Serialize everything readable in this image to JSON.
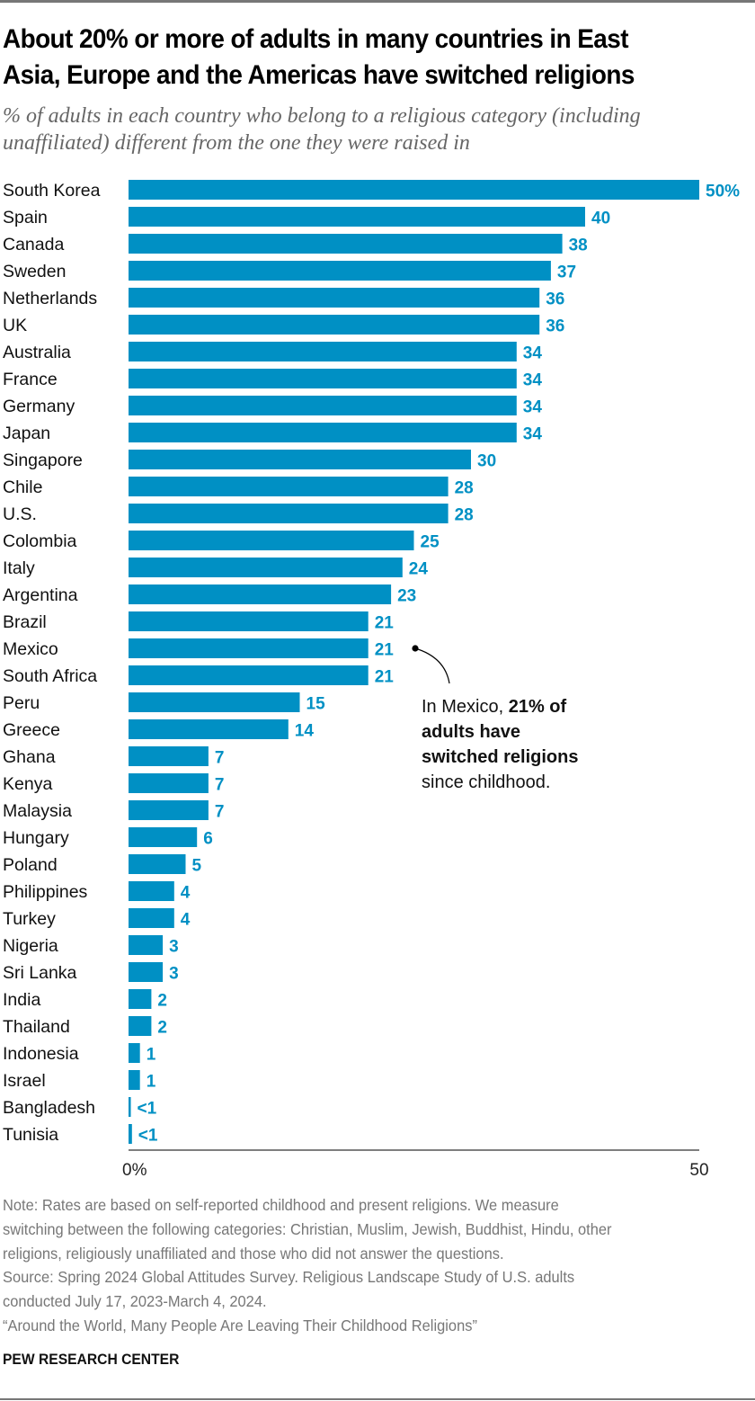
{
  "header": {
    "title_line1": "About 20% or more of adults in many countries in East",
    "title_line2": "Asia, Europe and the Americas have switched religions",
    "subtitle_line1": "% of adults in each country who belong to a religious category (including",
    "subtitle_line2": "unaffiliated) different from the one they were raised in"
  },
  "annotation": {
    "part1": "In Mexico, ",
    "bold1": "21% of",
    "bold2": "adults have",
    "bold3": "switched religions",
    "part2": "since childhood.",
    "target": "Mexico"
  },
  "colors": {
    "bar": "#0090C4",
    "label": "#0090C4",
    "axis": "#555555"
  },
  "chart_data": {
    "type": "bar",
    "orientation": "horizontal",
    "title": "About 20% or more of adults in many countries in East Asia, Europe and the Americas have switched religions",
    "xlabel": "",
    "ylabel": "",
    "xlim": [
      0,
      50
    ],
    "x_ticks": [
      "0%",
      "50"
    ],
    "grid": false,
    "categories": [
      "South Korea",
      "Spain",
      "Canada",
      "Sweden",
      "Netherlands",
      "UK",
      "Australia",
      "France",
      "Germany",
      "Japan",
      "Singapore",
      "Chile",
      "U.S.",
      "Colombia",
      "Italy",
      "Argentina",
      "Brazil",
      "Mexico",
      "South Africa",
      "Peru",
      "Greece",
      "Ghana",
      "Kenya",
      "Malaysia",
      "Hungary",
      "Poland",
      "Philippines",
      "Turkey",
      "Nigeria",
      "Sri Lanka",
      "India",
      "Thailand",
      "Indonesia",
      "Israel",
      "Bangladesh",
      "Tunisia"
    ],
    "values": [
      50,
      40,
      38,
      37,
      36,
      36,
      34,
      34,
      34,
      34,
      30,
      28,
      28,
      25,
      24,
      23,
      21,
      21,
      21,
      15,
      14,
      7,
      7,
      7,
      6,
      5,
      4,
      4,
      3,
      3,
      2,
      2,
      1,
      1,
      0.2,
      0.3
    ],
    "data_labels": [
      "50%",
      "40",
      "38",
      "37",
      "36",
      "36",
      "34",
      "34",
      "34",
      "34",
      "30",
      "28",
      "28",
      "25",
      "24",
      "23",
      "21",
      "21",
      "21",
      "15",
      "14",
      "7",
      "7",
      "7",
      "6",
      "5",
      "4",
      "4",
      "3",
      "3",
      "2",
      "2",
      "1",
      "1",
      "<1",
      "<1"
    ]
  },
  "footer": {
    "note_line1": "Note: Rates are based on self-reported childhood and present religions. We measure",
    "note_line2": "switching between the following categories: Christian, Muslim, Jewish, Buddhist, Hindu, other",
    "note_line3": "religions, religiously unaffiliated and those who did not answer the questions.",
    "source_line1": "Source: Spring 2024 Global Attitudes Survey. Religious Landscape Study of U.S. adults",
    "source_line2": "conducted July 17, 2023-March 4, 2024.",
    "report_title": "“Around the World, Many People Are Leaving Their Childhood Religions”",
    "brand": "PEW RESEARCH CENTER"
  }
}
